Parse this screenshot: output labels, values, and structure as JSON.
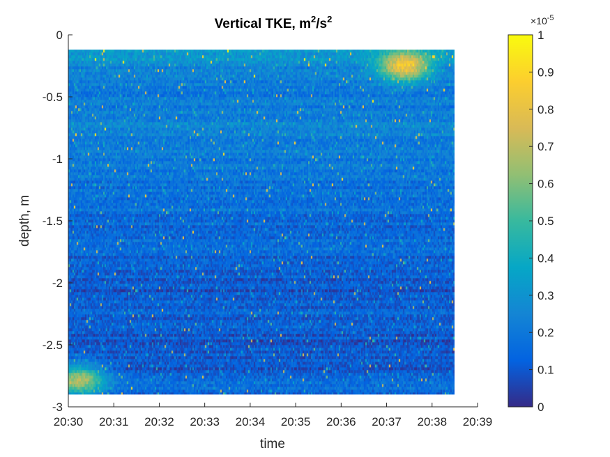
{
  "chart_data": {
    "type": "heatmap",
    "title": "Vertical TKE, m",
    "title_unit_parts": [
      "2",
      "/s",
      "2"
    ],
    "xlabel": "time",
    "ylabel": "depth, m",
    "x_ticks": [
      "20:30",
      "20:31",
      "20:32",
      "20:33",
      "20:34",
      "20:35",
      "20:36",
      "20:37",
      "20:38",
      "20:39"
    ],
    "x_range_minutes": [
      0,
      9
    ],
    "data_x_extent_minutes": [
      0,
      8.5
    ],
    "y_ticks": [
      "0",
      "-0.5",
      "-1",
      "-1.5",
      "-2",
      "-2.5",
      "-3"
    ],
    "ylim": [
      -3,
      0
    ],
    "data_depth_extent": [
      -2.9,
      -0.12
    ],
    "colorbar": {
      "ticks": [
        "0",
        "0.1",
        "0.2",
        "0.3",
        "0.4",
        "0.5",
        "0.6",
        "0.7",
        "0.8",
        "0.9",
        "1"
      ],
      "clim": [
        0,
        1
      ],
      "multiplier_base": "×10",
      "multiplier_exp": "-5",
      "colormap": "parula"
    },
    "profile": {
      "depth": [
        -0.15,
        -0.3,
        -0.5,
        -0.75,
        -1.0,
        -1.25,
        -1.5,
        -1.75,
        -2.0,
        -2.25,
        -2.5,
        -2.75,
        -2.85
      ],
      "mean_value": [
        0.32,
        0.22,
        0.2,
        0.24,
        0.2,
        0.18,
        0.16,
        0.15,
        0.1,
        0.12,
        0.1,
        0.12,
        0.16
      ]
    },
    "hotspots": [
      {
        "time_min": 7.4,
        "depth": -0.25,
        "value": 0.95
      },
      {
        "time_min": 0.25,
        "depth": -2.78,
        "value": 0.75
      }
    ],
    "grid": false
  },
  "colors": {
    "background": "#ffffff",
    "axis": "#262626",
    "colormap_stops": [
      "#352a87",
      "#0363e1",
      "#1485d4",
      "#06a7c6",
      "#38b99e",
      "#92bf73",
      "#d9ba56",
      "#fcce2e",
      "#f9fb0e"
    ]
  }
}
